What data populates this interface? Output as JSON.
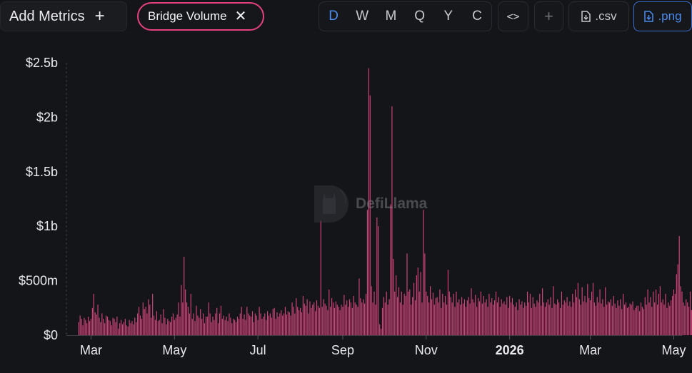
{
  "toolbar": {
    "add_metrics_label": "Add Metrics",
    "add_metrics_icon": "plus-icon",
    "metric_chip_label": "Bridge Volume",
    "metric_chip_close_icon": "close-icon",
    "periods": [
      "D",
      "W",
      "M",
      "Q",
      "Y",
      "C"
    ],
    "active_period": "D",
    "embed_icon": "code-icon",
    "add_icon": "plus-icon",
    "csv_label": ".csv",
    "png_label": ".png",
    "download_icon": "file-download-icon"
  },
  "watermark": {
    "text": "DefiLlama",
    "icon": "llama-logo-icon"
  },
  "colors": {
    "bar": "#d1457a",
    "accent": "#e5417f",
    "active": "#4a8cf0",
    "background": "#141519"
  },
  "chart_data": {
    "type": "bar",
    "title": "",
    "xlabel": "",
    "ylabel": "",
    "ylim": [
      0,
      2500000000
    ],
    "y_ticks": [
      {
        "value": 0,
        "label": "$0"
      },
      {
        "value": 500000000,
        "label": "$500m"
      },
      {
        "value": 1000000000,
        "label": "$1b"
      },
      {
        "value": 1500000000,
        "label": "$1.5b"
      },
      {
        "value": 2000000000,
        "label": "$2b"
      },
      {
        "value": 2500000000,
        "label": "$2.5b"
      }
    ],
    "x_range": [
      "2025-02-11",
      "2026-05-07"
    ],
    "x_ticks": [
      {
        "date": "2025-03-01",
        "label": "Mar",
        "bold": false
      },
      {
        "date": "2025-05-01",
        "label": "May",
        "bold": false
      },
      {
        "date": "2025-07-01",
        "label": "Jul",
        "bold": false
      },
      {
        "date": "2025-09-01",
        "label": "Sep",
        "bold": false
      },
      {
        "date": "2025-11-01",
        "label": "Nov",
        "bold": false
      },
      {
        "date": "2026-01-01",
        "label": "2026",
        "bold": true
      },
      {
        "date": "2026-03-01",
        "label": "Mar",
        "bold": false
      },
      {
        "date": "2026-05-01",
        "label": "May",
        "bold": false
      }
    ],
    "grid": false,
    "legend": "none",
    "series": [
      {
        "start": "2025-02-20",
        "interval": "1 day",
        "values": [
          120000000,
          180000000,
          150000000,
          90000000,
          160000000,
          140000000,
          110000000,
          170000000,
          130000000,
          150000000,
          250000000,
          380000000,
          210000000,
          190000000,
          280000000,
          160000000,
          120000000,
          200000000,
          150000000,
          110000000,
          180000000,
          170000000,
          140000000,
          130000000,
          90000000,
          160000000,
          150000000,
          120000000,
          170000000,
          60000000,
          110000000,
          140000000,
          100000000,
          120000000,
          150000000,
          90000000,
          80000000,
          140000000,
          110000000,
          130000000,
          100000000,
          160000000,
          120000000,
          200000000,
          260000000,
          180000000,
          150000000,
          300000000,
          240000000,
          260000000,
          200000000,
          330000000,
          280000000,
          160000000,
          380000000,
          180000000,
          140000000,
          220000000,
          130000000,
          140000000,
          190000000,
          110000000,
          240000000,
          160000000,
          100000000,
          150000000,
          130000000,
          120000000,
          170000000,
          200000000,
          140000000,
          160000000,
          190000000,
          300000000,
          170000000,
          460000000,
          300000000,
          720000000,
          420000000,
          300000000,
          260000000,
          200000000,
          380000000,
          150000000,
          200000000,
          130000000,
          270000000,
          180000000,
          160000000,
          240000000,
          150000000,
          200000000,
          110000000,
          170000000,
          170000000,
          300000000,
          200000000,
          120000000,
          170000000,
          140000000,
          200000000,
          250000000,
          110000000,
          200000000,
          270000000,
          150000000,
          180000000,
          140000000,
          170000000,
          130000000,
          200000000,
          160000000,
          110000000,
          150000000,
          140000000,
          120000000,
          170000000,
          150000000,
          200000000,
          260000000,
          150000000,
          190000000,
          140000000,
          260000000,
          200000000,
          180000000,
          170000000,
          220000000,
          120000000,
          200000000,
          180000000,
          140000000,
          260000000,
          200000000,
          150000000,
          170000000,
          200000000,
          140000000,
          220000000,
          180000000,
          200000000,
          160000000,
          240000000,
          250000000,
          150000000,
          210000000,
          170000000,
          200000000,
          230000000,
          180000000,
          200000000,
          260000000,
          190000000,
          220000000,
          210000000,
          180000000,
          300000000,
          260000000,
          200000000,
          340000000,
          260000000,
          230000000,
          250000000,
          210000000,
          360000000,
          290000000,
          270000000,
          330000000,
          200000000,
          310000000,
          250000000,
          280000000,
          300000000,
          220000000,
          320000000,
          270000000,
          250000000,
          1050000000,
          260000000,
          330000000,
          290000000,
          270000000,
          230000000,
          420000000,
          260000000,
          340000000,
          300000000,
          250000000,
          310000000,
          280000000,
          260000000,
          230000000,
          280000000,
          260000000,
          370000000,
          280000000,
          320000000,
          260000000,
          330000000,
          300000000,
          250000000,
          360000000,
          300000000,
          280000000,
          260000000,
          520000000,
          340000000,
          300000000,
          330000000,
          290000000,
          380000000,
          1150000000,
          2450000000,
          2200000000,
          450000000,
          300000000,
          400000000,
          280000000,
          1080000000,
          1000000000,
          100000000,
          60000000,
          250000000,
          350000000,
          300000000,
          400000000,
          280000000,
          330000000,
          1200000000,
          2100000000,
          700000000,
          400000000,
          550000000,
          350000000,
          440000000,
          300000000,
          400000000,
          280000000,
          380000000,
          360000000,
          750000000,
          400000000,
          420000000,
          280000000,
          350000000,
          480000000,
          320000000,
          550000000,
          620000000,
          400000000,
          580000000,
          300000000,
          1150000000,
          750000000,
          400000000,
          360000000,
          300000000,
          450000000,
          330000000,
          390000000,
          280000000,
          340000000,
          350000000,
          300000000,
          420000000,
          250000000,
          380000000,
          300000000,
          360000000,
          280000000,
          600000000,
          400000000,
          350000000,
          300000000,
          380000000,
          260000000,
          400000000,
          300000000,
          330000000,
          280000000,
          350000000,
          290000000,
          330000000,
          260000000,
          320000000,
          350000000,
          290000000,
          430000000,
          330000000,
          300000000,
          370000000,
          260000000,
          340000000,
          310000000,
          400000000,
          290000000,
          360000000,
          300000000,
          330000000,
          260000000,
          380000000,
          300000000,
          340000000,
          280000000,
          320000000,
          400000000,
          300000000,
          350000000,
          260000000,
          330000000,
          290000000,
          310000000,
          280000000,
          350000000,
          250000000,
          360000000,
          300000000,
          340000000,
          280000000,
          260000000,
          300000000,
          230000000,
          330000000,
          280000000,
          310000000,
          250000000,
          300000000,
          270000000,
          400000000,
          300000000,
          380000000,
          250000000,
          350000000,
          290000000,
          260000000,
          320000000,
          300000000,
          380000000,
          270000000,
          430000000,
          300000000,
          260000000,
          300000000,
          330000000,
          280000000,
          350000000,
          250000000,
          450000000,
          290000000,
          280000000,
          330000000,
          300000000,
          250000000,
          400000000,
          280000000,
          320000000,
          300000000,
          350000000,
          270000000,
          310000000,
          260000000,
          380000000,
          300000000,
          420000000,
          350000000,
          480000000,
          330000000,
          280000000,
          440000000,
          310000000,
          360000000,
          300000000,
          470000000,
          340000000,
          320000000,
          400000000,
          480000000,
          300000000,
          270000000,
          350000000,
          300000000,
          420000000,
          290000000,
          330000000,
          260000000,
          440000000,
          280000000,
          310000000,
          300000000,
          330000000,
          270000000,
          360000000,
          290000000,
          250000000,
          320000000,
          270000000,
          330000000,
          240000000,
          380000000,
          280000000,
          300000000,
          250000000,
          260000000,
          290000000,
          280000000,
          310000000,
          230000000,
          250000000,
          270000000,
          270000000,
          220000000,
          300000000,
          260000000,
          240000000,
          350000000,
          280000000,
          420000000,
          300000000,
          350000000,
          260000000,
          400000000,
          300000000,
          420000000,
          280000000,
          380000000,
          450000000,
          300000000,
          330000000,
          280000000,
          380000000,
          250000000,
          300000000,
          270000000,
          320000000,
          360000000,
          420000000,
          380000000,
          560000000,
          650000000,
          910000000,
          450000000,
          400000000,
          300000000,
          270000000,
          330000000,
          300000000,
          260000000,
          400000000,
          230000000,
          250000000,
          300000000,
          270000000,
          220000000,
          350000000,
          420000000,
          200000000,
          260000000,
          240000000,
          200000000
        ]
      }
    ]
  }
}
